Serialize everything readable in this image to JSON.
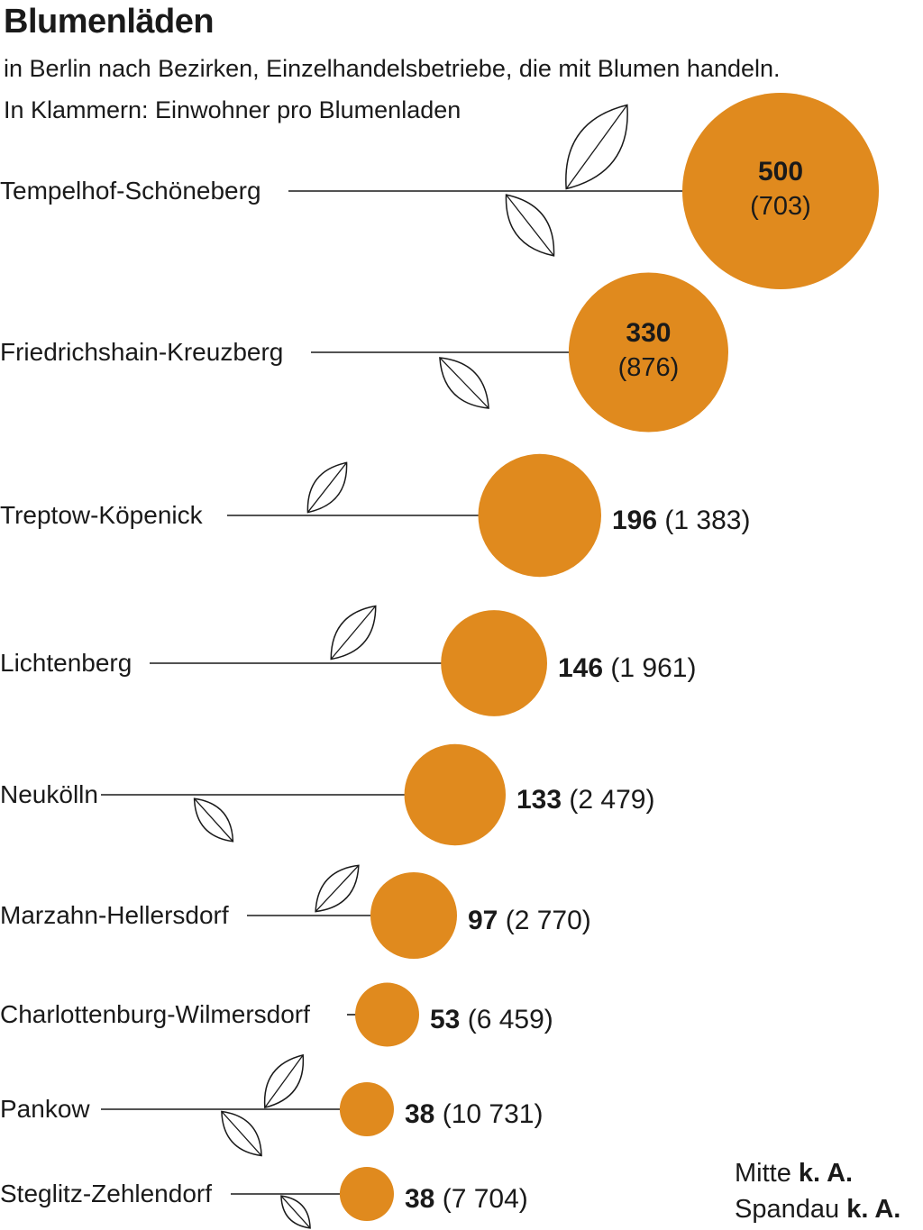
{
  "chart_data": {
    "type": "bubble",
    "title": "Blumenläden",
    "subtitle": "in Berlin nach Bezirken, Einzelhandelsbetriebe, die mit Blumen handeln.",
    "subtitle2": "In Klammern: Einwohner pro Blumenladen",
    "accent_color": "#e08a1e",
    "categories": [
      "Tempelhof-Schöneberg",
      "Friedrichshain-Kreuzberg",
      "Treptow-Köpenick",
      "Lichtenberg",
      "Neukölln",
      "Marzahn-Hellersdorf",
      "Charlottenburg-Wilmersdorf",
      "Pankow",
      "Steglitz-Zehlendorf"
    ],
    "values": [
      500,
      330,
      196,
      146,
      133,
      97,
      53,
      38,
      38
    ],
    "value_labels": [
      "500",
      "330",
      "196",
      "146",
      "133",
      "97",
      "53",
      "38",
      "38"
    ],
    "residents_per_shop": [
      "(703)",
      "(876)",
      "(1 383)",
      "(1 961)",
      "(2 479)",
      "(2 770)",
      "(6 459)",
      "(10 731)",
      "(7 704)"
    ]
  },
  "footnotes": [
    {
      "district": "Mitte",
      "value": "k. A."
    },
    {
      "district": "Spandau",
      "value": "k. A."
    }
  ]
}
